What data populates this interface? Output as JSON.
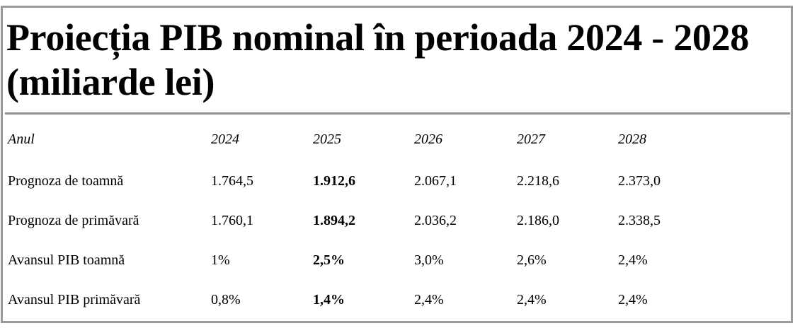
{
  "title": {
    "line1": "Proiecția PIB nominal în perioada 2024 - 2028",
    "line2": "(miliarde lei)"
  },
  "table": {
    "columns": [
      "Anul",
      "2024",
      "2025",
      "2026",
      "2027",
      "2028"
    ],
    "rows": [
      {
        "label": "Prognoza de toamnă",
        "values": [
          "1.764,5",
          "1.912,6",
          "2.067,1",
          "2.218,6",
          "2.373,0"
        ]
      },
      {
        "label": "Prognoza de primăvară",
        "values": [
          "1.760,1",
          "1.894,2",
          "2.036,2",
          "2.186,0",
          "2.338,5"
        ]
      },
      {
        "label": "Avansul PIB toamnă",
        "values": [
          "1%",
          "2,5%",
          "3,0%",
          "2,6%",
          "2,4%"
        ]
      },
      {
        "label": "Avansul PIB primăvară",
        "values": [
          "0,8%",
          "1,4%",
          "2,4%",
          "2,4%",
          "2,4%"
        ]
      }
    ]
  }
}
